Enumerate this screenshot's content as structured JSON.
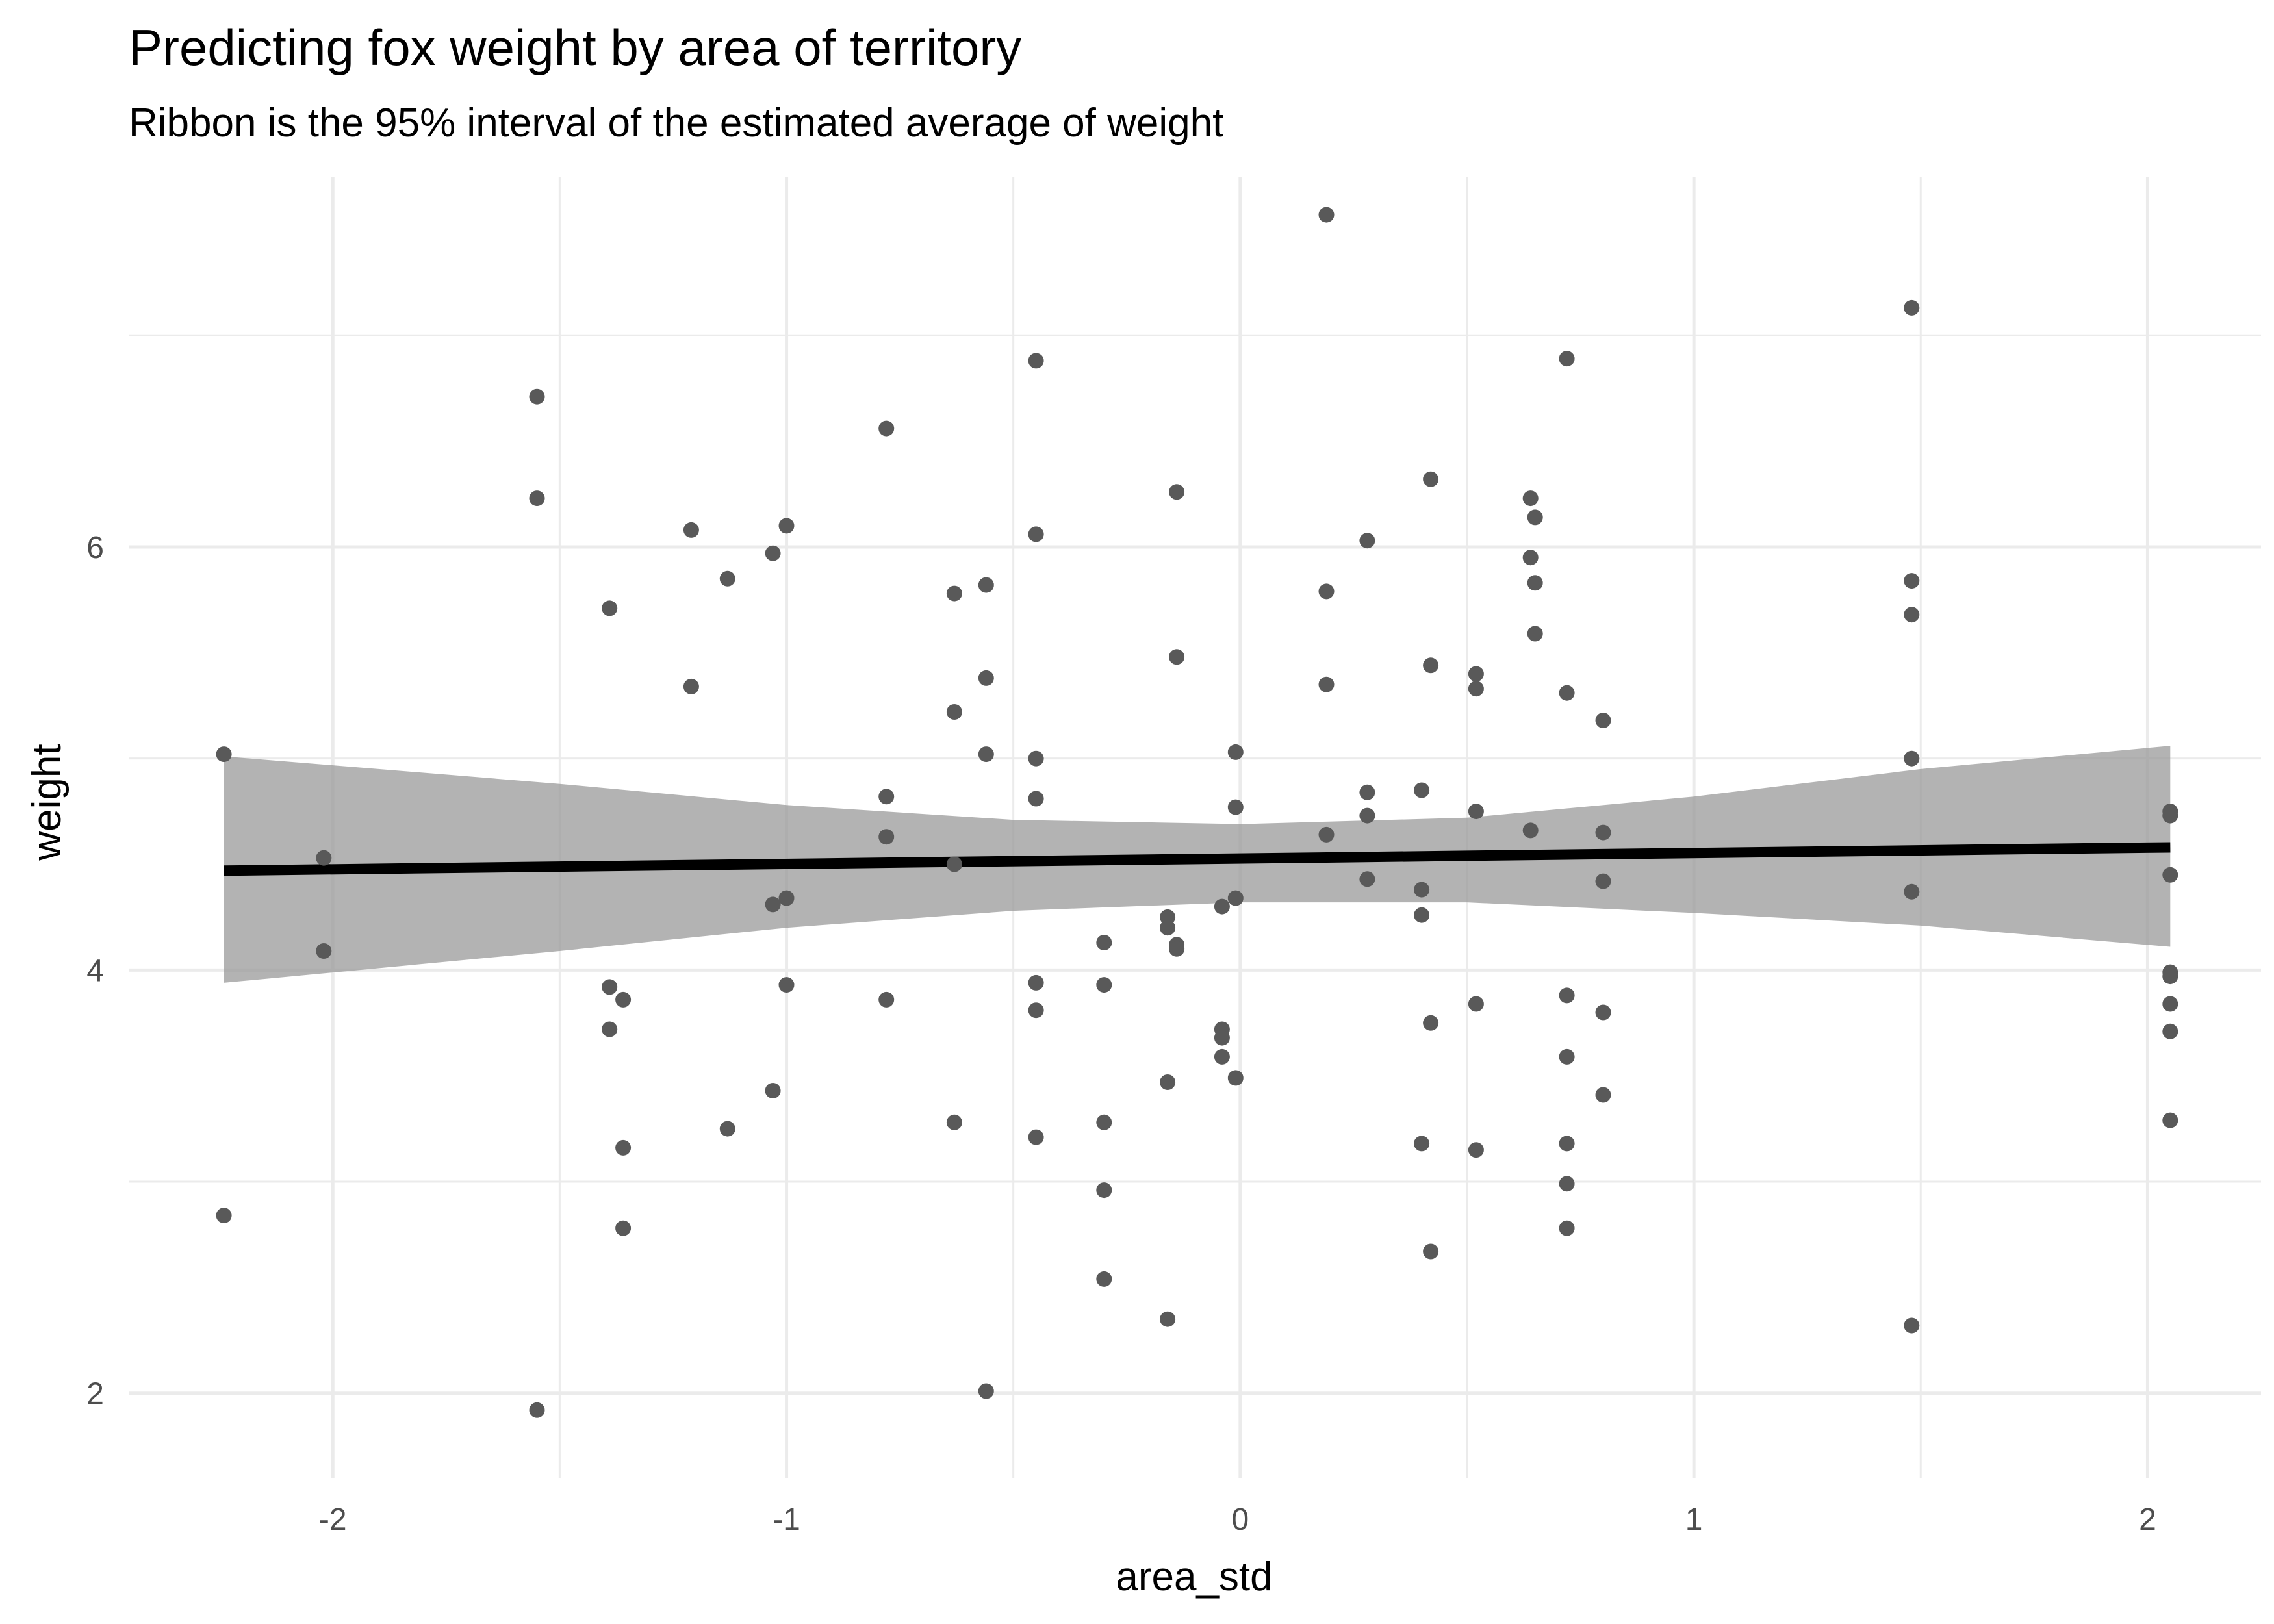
{
  "chart_data": {
    "type": "scatter",
    "title": "Predicting fox weight by area of territory",
    "subtitle": "Ribbon is the 95% interval of the estimated average of weight",
    "xlabel": "area_std",
    "ylabel": "weight",
    "xlim": [
      -2.45,
      2.25
    ],
    "ylim": [
      1.6,
      7.75
    ],
    "x_ticks": [
      -2,
      -1,
      0,
      1,
      2
    ],
    "y_ticks": [
      2,
      4,
      6
    ],
    "x_minor_ticks": [
      -1.5,
      -0.5,
      0.5,
      1.5
    ],
    "y_minor_ticks": [
      3,
      5,
      7
    ],
    "grid": true,
    "colors": {
      "points": "#595959",
      "line": "#000000",
      "ribbon": "#999999",
      "grid": "#ebebeb"
    },
    "points": [
      {
        "x": -2.24,
        "y": 5.02
      },
      {
        "x": -2.24,
        "y": 2.84
      },
      {
        "x": -2.02,
        "y": 4.53
      },
      {
        "x": -2.02,
        "y": 4.09
      },
      {
        "x": -1.55,
        "y": 6.71
      },
      {
        "x": -1.55,
        "y": 6.23
      },
      {
        "x": -1.55,
        "y": 1.92
      },
      {
        "x": -1.39,
        "y": 5.71
      },
      {
        "x": -1.39,
        "y": 3.92
      },
      {
        "x": -1.39,
        "y": 3.72
      },
      {
        "x": -1.36,
        "y": 3.86
      },
      {
        "x": -1.36,
        "y": 3.16
      },
      {
        "x": -1.36,
        "y": 2.78
      },
      {
        "x": -1.21,
        "y": 6.08
      },
      {
        "x": -1.21,
        "y": 5.34
      },
      {
        "x": -1.13,
        "y": 5.85
      },
      {
        "x": -1.13,
        "y": 3.25
      },
      {
        "x": -1.03,
        "y": 5.97
      },
      {
        "x": -1.03,
        "y": 4.31
      },
      {
        "x": -1.03,
        "y": 3.43
      },
      {
        "x": -1.0,
        "y": 6.1
      },
      {
        "x": -1.0,
        "y": 4.34
      },
      {
        "x": -1.0,
        "y": 3.93
      },
      {
        "x": -0.78,
        "y": 6.56
      },
      {
        "x": -0.78,
        "y": 4.82
      },
      {
        "x": -0.78,
        "y": 4.63
      },
      {
        "x": -0.78,
        "y": 3.86
      },
      {
        "x": -0.63,
        "y": 5.78
      },
      {
        "x": -0.63,
        "y": 5.22
      },
      {
        "x": -0.63,
        "y": 4.5
      },
      {
        "x": -0.63,
        "y": 3.28
      },
      {
        "x": -0.56,
        "y": 5.82
      },
      {
        "x": -0.56,
        "y": 5.38
      },
      {
        "x": -0.56,
        "y": 5.02
      },
      {
        "x": -0.56,
        "y": 2.01
      },
      {
        "x": -0.45,
        "y": 6.88
      },
      {
        "x": -0.45,
        "y": 6.06
      },
      {
        "x": -0.45,
        "y": 5.0
      },
      {
        "x": -0.45,
        "y": 4.81
      },
      {
        "x": -0.45,
        "y": 3.94
      },
      {
        "x": -0.45,
        "y": 3.81
      },
      {
        "x": -0.45,
        "y": 3.21
      },
      {
        "x": -0.3,
        "y": 4.13
      },
      {
        "x": -0.3,
        "y": 3.93
      },
      {
        "x": -0.3,
        "y": 3.28
      },
      {
        "x": -0.3,
        "y": 2.96
      },
      {
        "x": -0.3,
        "y": 2.54
      },
      {
        "x": -0.16,
        "y": 4.25
      },
      {
        "x": -0.16,
        "y": 4.2
      },
      {
        "x": -0.16,
        "y": 3.47
      },
      {
        "x": -0.16,
        "y": 2.35
      },
      {
        "x": -0.14,
        "y": 6.26
      },
      {
        "x": -0.14,
        "y": 5.48
      },
      {
        "x": -0.14,
        "y": 4.12
      },
      {
        "x": -0.14,
        "y": 4.1
      },
      {
        "x": -0.04,
        "y": 4.3
      },
      {
        "x": -0.04,
        "y": 3.72
      },
      {
        "x": -0.04,
        "y": 3.68
      },
      {
        "x": -0.04,
        "y": 3.59
      },
      {
        "x": -0.01,
        "y": 5.03
      },
      {
        "x": -0.01,
        "y": 4.77
      },
      {
        "x": -0.01,
        "y": 4.34
      },
      {
        "x": -0.01,
        "y": 3.49
      },
      {
        "x": 0.19,
        "y": 7.57
      },
      {
        "x": 0.19,
        "y": 5.79
      },
      {
        "x": 0.19,
        "y": 5.35
      },
      {
        "x": 0.19,
        "y": 4.64
      },
      {
        "x": 0.28,
        "y": 6.03
      },
      {
        "x": 0.28,
        "y": 4.84
      },
      {
        "x": 0.28,
        "y": 4.73
      },
      {
        "x": 0.28,
        "y": 4.43
      },
      {
        "x": 0.4,
        "y": 4.85
      },
      {
        "x": 0.4,
        "y": 4.38
      },
      {
        "x": 0.4,
        "y": 4.26
      },
      {
        "x": 0.4,
        "y": 3.18
      },
      {
        "x": 0.42,
        "y": 6.32
      },
      {
        "x": 0.42,
        "y": 5.44
      },
      {
        "x": 0.42,
        "y": 3.75
      },
      {
        "x": 0.42,
        "y": 2.67
      },
      {
        "x": 0.52,
        "y": 5.4
      },
      {
        "x": 0.52,
        "y": 5.33
      },
      {
        "x": 0.52,
        "y": 4.75
      },
      {
        "x": 0.52,
        "y": 3.84
      },
      {
        "x": 0.52,
        "y": 3.15
      },
      {
        "x": 0.64,
        "y": 6.23
      },
      {
        "x": 0.64,
        "y": 5.95
      },
      {
        "x": 0.64,
        "y": 4.66
      },
      {
        "x": 0.65,
        "y": 6.14
      },
      {
        "x": 0.65,
        "y": 5.83
      },
      {
        "x": 0.65,
        "y": 5.59
      },
      {
        "x": 0.72,
        "y": 6.89
      },
      {
        "x": 0.72,
        "y": 5.31
      },
      {
        "x": 0.72,
        "y": 3.88
      },
      {
        "x": 0.72,
        "y": 3.59
      },
      {
        "x": 0.72,
        "y": 3.18
      },
      {
        "x": 0.72,
        "y": 2.99
      },
      {
        "x": 0.72,
        "y": 2.78
      },
      {
        "x": 0.8,
        "y": 5.18
      },
      {
        "x": 0.8,
        "y": 4.65
      },
      {
        "x": 0.8,
        "y": 4.42
      },
      {
        "x": 0.8,
        "y": 3.8
      },
      {
        "x": 0.8,
        "y": 3.41
      },
      {
        "x": 1.48,
        "y": 7.13
      },
      {
        "x": 1.48,
        "y": 5.84
      },
      {
        "x": 1.48,
        "y": 5.68
      },
      {
        "x": 1.48,
        "y": 5.0
      },
      {
        "x": 1.48,
        "y": 4.37
      },
      {
        "x": 1.48,
        "y": 2.32
      },
      {
        "x": 2.05,
        "y": 4.75
      },
      {
        "x": 2.05,
        "y": 4.73
      },
      {
        "x": 2.05,
        "y": 4.45
      },
      {
        "x": 2.05,
        "y": 3.99
      },
      {
        "x": 2.05,
        "y": 3.97
      },
      {
        "x": 2.05,
        "y": 3.84
      },
      {
        "x": 2.05,
        "y": 3.71
      },
      {
        "x": 2.05,
        "y": 3.29
      }
    ],
    "line": [
      {
        "x": -2.24,
        "y": 4.47
      },
      {
        "x": 2.05,
        "y": 4.58
      }
    ],
    "ribbon": [
      {
        "x": -2.24,
        "lower": 3.94,
        "upper": 5.01
      },
      {
        "x": -1.5,
        "lower": 4.09,
        "upper": 4.88
      },
      {
        "x": -1.0,
        "lower": 4.2,
        "upper": 4.78
      },
      {
        "x": -0.5,
        "lower": 4.28,
        "upper": 4.71
      },
      {
        "x": 0.0,
        "lower": 4.32,
        "upper": 4.69
      },
      {
        "x": 0.5,
        "lower": 4.32,
        "upper": 4.72
      },
      {
        "x": 1.0,
        "lower": 4.27,
        "upper": 4.82
      },
      {
        "x": 1.5,
        "lower": 4.21,
        "upper": 4.95
      },
      {
        "x": 2.05,
        "lower": 4.11,
        "upper": 5.06
      }
    ]
  }
}
